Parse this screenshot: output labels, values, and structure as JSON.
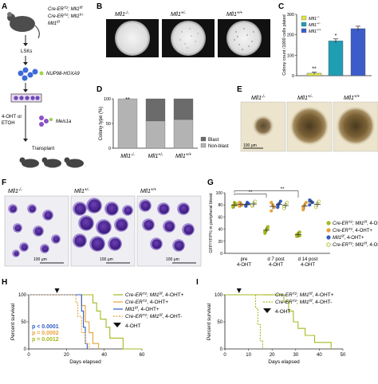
{
  "panels": {
    "A": {
      "letter": "A",
      "genotype_lines": [
        "Cre-ER",
        "T2",
        "; Mll1",
        "f/f",
        "Cre-ER",
        "T2",
        "; Mll1",
        "f/+",
        "Mll1",
        "f/f"
      ],
      "g1": "Cre-ER",
      "g1s": "T2",
      "g1b": "; Mll1",
      "g1c": "f/f",
      "g2": "Cre-ER",
      "g2s": "T2",
      "g2b": "; Mll1",
      "g2c": "f/+",
      "g3": "Mll1",
      "g3c": "f/f",
      "lsk": "LSKs",
      "fusion": "NUP98-HOXA9",
      "treat1": "4-OHT",
      "treat_or": "or",
      "treat2": "ETOH",
      "meis": "Meis1a",
      "transplant": "Transplant"
    },
    "B": {
      "letter": "B",
      "labels": [
        {
          "base": "Mll1",
          "sup": "-/-"
        },
        {
          "base": "Mll1",
          "sup": "+/-"
        },
        {
          "base": "Mll1",
          "sup": "+/+"
        }
      ]
    },
    "C": {
      "letter": "C",
      "ylabel": "Colony count /1000 cells plated",
      "legend": [
        {
          "base": "Mll1",
          "sup": "-/-",
          "color": "#d9e24a"
        },
        {
          "base": "Mll1",
          "sup": "+/-",
          "color": "#1f9db3"
        },
        {
          "base": "Mll1",
          "sup": "+/+",
          "color": "#3c5dc9"
        }
      ],
      "sig1": "**",
      "sig2": "*"
    },
    "D": {
      "letter": "D",
      "ylabel": "Colony type (%)",
      "sig": "**",
      "legend": [
        {
          "label": "Blast",
          "color": "#6b6b6b"
        },
        {
          "label": "Non-blast",
          "color": "#b3b3b3"
        }
      ],
      "labels": [
        {
          "base": "Mll1",
          "sup": "-/-"
        },
        {
          "base": "Mll1",
          "sup": "+/-"
        },
        {
          "base": "Mll1",
          "sup": "+/+"
        }
      ]
    },
    "E": {
      "letter": "E",
      "labels": [
        {
          "base": "Mll1",
          "sup": "-/-"
        },
        {
          "base": "Mll1",
          "sup": "+/-"
        },
        {
          "base": "Mll1",
          "sup": "+/+"
        }
      ],
      "scale": "100 μm"
    },
    "F": {
      "letter": "F",
      "labels": [
        {
          "base": "Mll1",
          "sup": "-/-"
        },
        {
          "base": "Mll1",
          "sup": "+/-"
        },
        {
          "base": "Mll1",
          "sup": "+/+"
        }
      ],
      "scale": "100 μm"
    },
    "G": {
      "letter": "G",
      "ylabel": "GFP/YFP% in peripheral blood",
      "groups": [
        "pre\n4-OHT",
        "d 7 post\n4-OHT",
        "d 14 post\n4-OHT"
      ],
      "group_lines": [
        [
          "pre",
          "4-OHT"
        ],
        [
          "d 7 post",
          "4-OHT"
        ],
        [
          "d 14 post",
          "4-OHT"
        ]
      ],
      "sig": "**",
      "legend": [
        {
          "g": "Cre-ER",
          "s": "T2",
          "b": "; Mll1",
          "c": "f/f",
          "t": ", 4-OHT+",
          "color": "#a8b820",
          "shape": "filled"
        },
        {
          "g": "Cre-ER",
          "s": "T2",
          "b": "",
          "c": "",
          "t": ", 4-OHT+",
          "color": "#e6a23c",
          "shape": "filled"
        },
        {
          "g": "Mll1",
          "s": "",
          "b": "",
          "c": "f/f",
          "t": ", 4-OHT+",
          "color": "#2f5cc4",
          "shape": "filled"
        },
        {
          "g": "Cre-ER",
          "s": "T2",
          "b": "; Mll1",
          "c": "f/f",
          "t": ", 4-OHT-",
          "color": "#a8b820",
          "shape": "open"
        }
      ]
    },
    "H": {
      "letter": "H",
      "ylabel": "Percent survival",
      "xlabel": "Days elapsed",
      "pvals": [
        {
          "text": "p < 0.0001",
          "color": "#2f5cc4"
        },
        {
          "text": "p = 0.0002",
          "color": "#e6a23c"
        },
        {
          "text": "p = 0.0012",
          "color": "#a8b820"
        }
      ],
      "legend": [
        {
          "g": "Cre-ER",
          "s": "T2",
          "b": "; Mll1",
          "c": "f/f",
          "t": ", 4-OHT+",
          "color": "#a8b820",
          "dash": false
        },
        {
          "g": "Cre-ER",
          "s": "T2",
          "b": "",
          "c": "",
          "t": ", 4-OHT+",
          "color": "#e6a23c",
          "dash": false
        },
        {
          "g": "Mll1",
          "s": "",
          "b": "",
          "c": "f/f",
          "t": ", 4-OHT+",
          "color": "#2f5cc4",
          "dash": false
        },
        {
          "g": "Cre-ER",
          "s": "T2",
          "b": "; Mll1",
          "c": "f/f",
          "t": ", 4-OHT-",
          "color": "#e6a23c",
          "dash": true
        }
      ],
      "arrow_label": "4-OHT"
    },
    "I": {
      "letter": "I",
      "ylabel": "Percent survival",
      "xlabel": "Days elapsed",
      "legend": [
        {
          "g": "Cre-ER",
          "s": "T2",
          "b": "; Mll1",
          "c": "f/f",
          "t": ", 4-OHT+",
          "color": "#a8b820",
          "dash": false
        },
        {
          "g": "Cre-ER",
          "s": "T2",
          "b": "; Mll1",
          "c": "f/f",
          "t": ", 4-OHT-",
          "color": "#a8b820",
          "dash": true
        }
      ],
      "arrow_label": "4-OHT"
    }
  },
  "chart_data": [
    {
      "type": "bar",
      "id": "C",
      "ylabel": "Colony count /1000 cells plated",
      "ylim": [
        0,
        300
      ],
      "yticks": [
        0,
        100,
        200,
        300
      ],
      "categories": [
        "Mll1-/-",
        "Mll1+/-",
        "Mll1+/+"
      ],
      "values": [
        12,
        170,
        230
      ],
      "errors": [
        5,
        10,
        12
      ],
      "colors": [
        "#d9e24a",
        "#1f9db3",
        "#3c5dc9"
      ],
      "legend": "top-left"
    },
    {
      "type": "bar",
      "id": "D",
      "ylabel": "Colony type (%)",
      "ylim": [
        0,
        100
      ],
      "yticks": [
        0,
        50,
        100
      ],
      "categories": [
        "Mll1-/-",
        "Mll1+/-",
        "Mll1+/+"
      ],
      "series": [
        {
          "name": "Non-blast",
          "values": [
            100,
            55,
            58
          ]
        },
        {
          "name": "Blast",
          "values": [
            0,
            45,
            42
          ]
        }
      ],
      "stacked": true,
      "legend": "right"
    },
    {
      "type": "scatter",
      "id": "G",
      "ylabel": "GFP/YFP% in peripheral blood",
      "ylim": [
        0,
        100
      ],
      "yticks": [
        0,
        20,
        40,
        60,
        80,
        100
      ],
      "groups": [
        "pre 4-OHT",
        "d 7 post 4-OHT",
        "d 14 post 4-OHT"
      ],
      "series": [
        {
          "name": "Cre-ERT2; Mll1f/f, 4-OHT+",
          "values": [
            [
              76,
              80,
              82,
              78,
              84,
              80,
              79
            ],
            [
              33,
              38,
              42,
              36,
              40,
              44,
              35
            ],
            [
              28,
              32,
              35,
              30,
              33,
              29,
              31
            ]
          ]
        },
        {
          "name": "Cre-ERT2, 4-OHT+",
          "values": [
            [
              78,
              82,
              80,
              84
            ],
            [
              70,
              80,
              76,
              84
            ],
            [
              72,
              80,
              84,
              76
            ]
          ]
        },
        {
          "name": "Mll1f/f, 4-OHT+",
          "values": [
            [
              80,
              84,
              82,
              78
            ],
            [
              76,
              82,
              86,
              80
            ],
            [
              80,
              86,
              84,
              88
            ]
          ]
        },
        {
          "name": "Cre-ERT2; Mll1f/f, 4-OHT-",
          "values": [
            [
              78,
              82,
              86,
              80
            ],
            [
              74,
              80,
              84,
              78
            ],
            [
              76,
              82,
              86,
              80
            ]
          ]
        }
      ]
    },
    {
      "type": "line",
      "id": "H",
      "xlabel": "Days elapsed",
      "ylabel": "Percent survival",
      "xlim": [
        0,
        60
      ],
      "ylim": [
        0,
        100
      ],
      "xticks": [
        0,
        20,
        40,
        60
      ],
      "yticks": [
        0,
        50,
        100
      ],
      "series": [
        {
          "name": "Cre-ERT2; Mll1f/f, 4-OHT+",
          "x": [
            0,
            34,
            34,
            36,
            36,
            38,
            38,
            41,
            41,
            43,
            43,
            50,
            50,
            60
          ],
          "y": [
            100,
            100,
            85,
            85,
            70,
            70,
            55,
            55,
            40,
            40,
            20,
            20,
            0,
            0
          ]
        },
        {
          "name": "Cre-ERT2, 4-OHT+",
          "x": [
            0,
            28,
            28,
            30,
            30,
            32,
            32,
            34,
            34,
            37,
            37
          ],
          "y": [
            100,
            100,
            80,
            80,
            50,
            50,
            30,
            30,
            10,
            10,
            0
          ]
        },
        {
          "name": "Mll1f/f, 4-OHT+",
          "x": [
            0,
            28,
            28,
            29,
            29,
            30,
            30,
            31,
            31
          ],
          "y": [
            100,
            100,
            70,
            70,
            40,
            40,
            10,
            10,
            0
          ]
        },
        {
          "name": "Cre-ERT2; Mll1f/f, 4-OHT-",
          "x": [
            0,
            25,
            25,
            26,
            26,
            28,
            28,
            30,
            30,
            32,
            32
          ],
          "y": [
            100,
            100,
            85,
            85,
            60,
            60,
            30,
            30,
            10,
            10,
            0
          ]
        }
      ],
      "marker_x": 15
    },
    {
      "type": "line",
      "id": "I",
      "xlabel": "Days elapsed",
      "ylabel": "Percent survival",
      "xlim": [
        0,
        50
      ],
      "ylim": [
        0,
        100
      ],
      "xticks": [
        0,
        10,
        20,
        30,
        40,
        50
      ],
      "yticks": [
        0,
        50,
        100
      ],
      "series": [
        {
          "name": "Cre-ERT2; Mll1f/f, 4-OHT+",
          "x": [
            0,
            25,
            25,
            27,
            27,
            29,
            29,
            31,
            31,
            34,
            34,
            38,
            38,
            45,
            45
          ],
          "y": [
            100,
            100,
            88,
            88,
            70,
            70,
            50,
            50,
            38,
            38,
            25,
            25,
            12,
            12,
            0
          ]
        },
        {
          "name": "Cre-ERT2; Mll1f/f, 4-OHT-",
          "x": [
            0,
            13,
            13,
            14,
            14,
            15,
            15,
            16,
            16
          ],
          "y": [
            100,
            100,
            75,
            75,
            45,
            45,
            15,
            15,
            0
          ]
        }
      ],
      "marker_x": 6
    }
  ]
}
